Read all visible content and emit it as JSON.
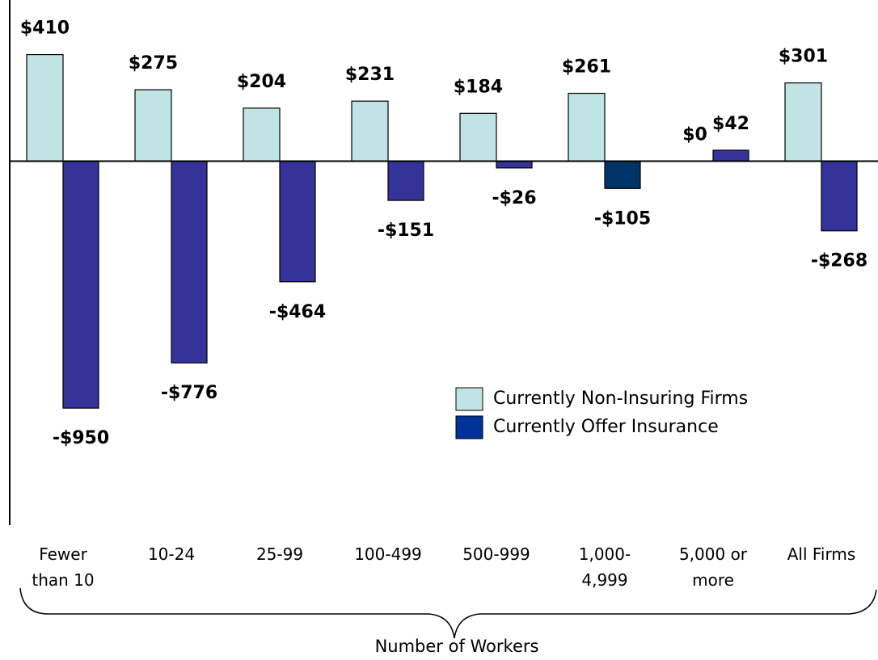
{
  "chart_data": {
    "type": "bar",
    "x_label": "Number of Workers",
    "categories": [
      "Fewer than 10",
      "10-24",
      "25-99",
      "100-499",
      "500-999",
      "1,000-4,999",
      "5,000 or more",
      "All Firms"
    ],
    "series": [
      {
        "name": "Currently Non-Insuring Firms",
        "color": "#c0e4e4",
        "values": [
          410,
          275,
          204,
          231,
          184,
          261,
          0,
          301
        ],
        "value_labels": [
          "$410",
          "$275",
          "$204",
          "$231",
          "$184",
          "$261",
          "$0",
          "$301"
        ]
      },
      {
        "name": "Currently Offer Insurance",
        "color": "#003399",
        "colors": [
          "#333399",
          "#333399",
          "#333399",
          "#333399",
          "#333399",
          "#003366",
          "#333399",
          "#333399"
        ],
        "values": [
          -950,
          -776,
          -464,
          -151,
          -26,
          -105,
          42,
          -268
        ],
        "value_labels": [
          "-$950",
          "-$776",
          "-$464",
          "-$151",
          "-$26",
          "-$105",
          "$42",
          "-$268"
        ]
      }
    ],
    "ylim": [
      -1400,
      620
    ]
  }
}
